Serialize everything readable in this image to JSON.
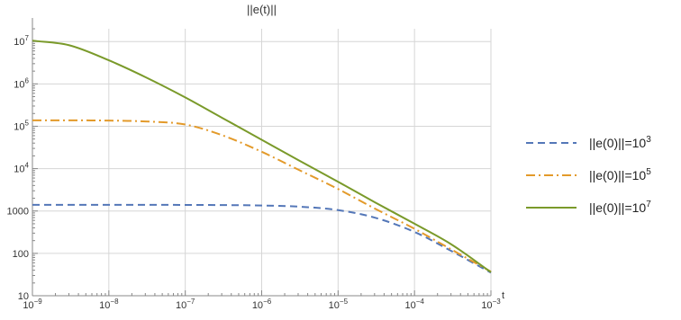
{
  "chart_data": {
    "type": "line",
    "title": "||e(t)||",
    "xlabel": "t",
    "ylabel": "",
    "xscale": "log",
    "yscale": "log",
    "xlim": [
      1e-09,
      0.001
    ],
    "ylim": [
      10,
      20000000.0
    ],
    "grid": true,
    "legend_position": "right",
    "x_ticks": [
      {
        "value": 1e-09,
        "base": "10",
        "exp": "−9"
      },
      {
        "value": 1e-08,
        "base": "10",
        "exp": "−8"
      },
      {
        "value": 1e-07,
        "base": "10",
        "exp": "−7"
      },
      {
        "value": 1e-06,
        "base": "10",
        "exp": "−6"
      },
      {
        "value": 1e-05,
        "base": "10",
        "exp": "−5"
      },
      {
        "value": 0.0001,
        "base": "10",
        "exp": "−4"
      },
      {
        "value": 0.001,
        "base": "10",
        "exp": "−3"
      }
    ],
    "y_ticks": [
      {
        "value": 10,
        "base": "10",
        "exp": ""
      },
      {
        "value": 100,
        "base": "100",
        "exp": ""
      },
      {
        "value": 1000,
        "base": "1000",
        "exp": ""
      },
      {
        "value": 10000,
        "base": "10",
        "exp": "4"
      },
      {
        "value": 100000,
        "base": "10",
        "exp": "5"
      },
      {
        "value": 1000000,
        "base": "10",
        "exp": "6"
      },
      {
        "value": 10000000,
        "base": "10",
        "exp": "7"
      }
    ],
    "x": [
      1e-09,
      3e-09,
      1e-08,
      3e-08,
      1e-07,
      3e-07,
      1e-06,
      3e-06,
      1e-05,
      3e-05,
      0.0001,
      0.0003,
      0.001
    ],
    "series": [
      {
        "name": "||e(0)||=10",
        "name_exp": "3",
        "color": "#5477b8",
        "dash": "8,5",
        "values": [
          1400,
          1400,
          1400,
          1400,
          1390,
          1380,
          1350,
          1270,
          1050,
          700,
          320,
          115,
          35
        ]
      },
      {
        "name": "||e(0)||=10",
        "name_exp": "5",
        "color": "#e39a2a",
        "dash": "10,4,2,4",
        "values": [
          138000,
          138000,
          136000,
          130000,
          110000,
          62000,
          25000,
          9500,
          3300,
          1150,
          380,
          125,
          37
        ]
      },
      {
        "name": "||e(0)||=10",
        "name_exp": "7",
        "color": "#7a9a2a",
        "dash": "",
        "values": [
          10500000,
          8200000,
          3600000,
          1450000,
          480000,
          160000,
          48000,
          16000,
          4900,
          1620,
          500,
          165,
          36
        ]
      }
    ]
  }
}
